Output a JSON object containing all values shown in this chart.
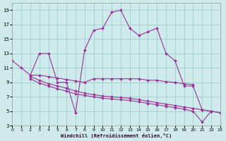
{
  "xlabel": "Windchill (Refroidissement éolien,°C)",
  "background_color": "#ceeaea",
  "line_color": "#993399",
  "grid_color": "#9ecece",
  "series1_x": [
    0,
    1,
    2,
    3,
    4,
    5,
    6,
    7,
    8,
    9,
    10,
    11,
    12,
    13,
    14,
    15,
    16,
    17,
    18,
    19,
    20,
    21,
    22,
    23
  ],
  "series1_y": [
    12.0,
    11.0,
    10.0,
    13.0,
    13.0,
    9.0,
    9.0,
    4.8,
    13.5,
    16.2,
    16.5,
    18.7,
    19.0,
    16.5,
    15.5,
    16.0,
    16.5,
    13.0,
    12.0,
    8.5,
    8.5,
    5.2,
    5.0,
    4.8
  ],
  "series2_x": [
    2,
    3,
    4,
    5,
    6,
    7,
    8,
    9,
    10,
    11,
    12,
    13,
    14,
    15,
    16,
    17,
    18,
    19,
    20
  ],
  "series2_y": [
    10.0,
    10.0,
    9.8,
    9.6,
    9.4,
    9.2,
    9.0,
    9.5,
    9.5,
    9.5,
    9.5,
    9.5,
    9.5,
    9.3,
    9.3,
    9.1,
    9.0,
    8.8,
    8.7
  ],
  "series3_x": [
    2,
    3,
    4,
    5,
    6,
    7,
    8,
    9,
    10,
    11,
    12,
    13,
    14,
    15,
    16,
    17,
    18,
    19,
    20,
    21,
    22
  ],
  "series3_y": [
    9.8,
    9.3,
    8.8,
    8.5,
    8.2,
    7.8,
    7.5,
    7.3,
    7.1,
    7.0,
    6.9,
    6.8,
    6.6,
    6.4,
    6.2,
    6.0,
    5.8,
    5.6,
    5.4,
    5.2,
    5.0
  ],
  "series4_x": [
    2,
    3,
    4,
    5,
    6,
    7,
    8,
    9,
    10,
    11,
    12,
    13,
    14,
    15,
    16,
    17,
    18,
    19,
    20,
    21,
    22,
    23
  ],
  "series4_y": [
    9.5,
    8.9,
    8.5,
    8.1,
    7.8,
    7.4,
    7.2,
    7.0,
    6.8,
    6.7,
    6.6,
    6.5,
    6.3,
    6.1,
    5.9,
    5.7,
    5.5,
    5.3,
    5.0,
    3.5,
    5.0,
    4.8
  ],
  "xlim": [
    0,
    23
  ],
  "ylim": [
    3,
    20
  ],
  "yticks": [
    3,
    5,
    7,
    9,
    11,
    13,
    15,
    17,
    19
  ],
  "xticks": [
    0,
    1,
    2,
    3,
    4,
    5,
    6,
    7,
    8,
    9,
    10,
    11,
    12,
    13,
    14,
    15,
    16,
    17,
    18,
    19,
    20,
    21,
    22,
    23
  ]
}
